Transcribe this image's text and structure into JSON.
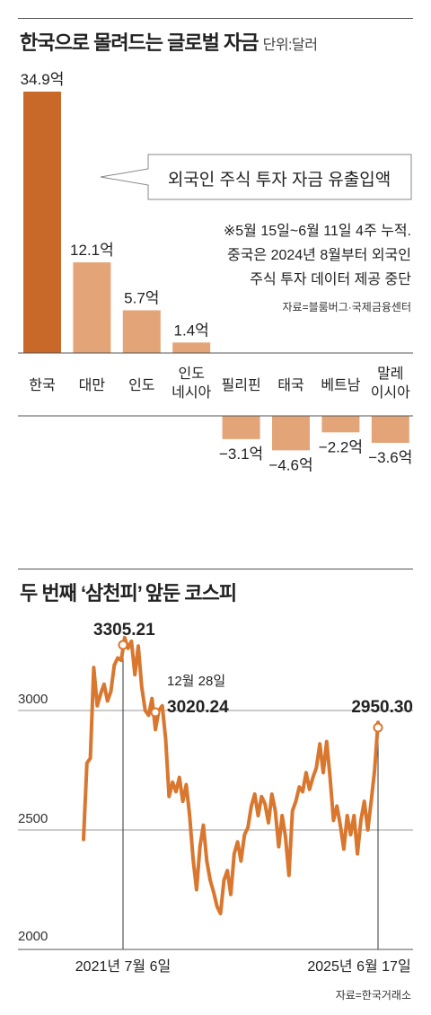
{
  "chart1": {
    "title": "한국으로 몰려드는 글로벌 자금",
    "unit": "단위:달러",
    "callout": "외국인 주식 투자 자금 유출입액",
    "note_lines": [
      "※5월 15일~6월 11일 4주 누적.",
      "중국은 2024년 8월부터 외국인",
      "주식 투자 데이터 제공 중단"
    ],
    "source": "자료=블룸버그·국제금융센터",
    "colors": {
      "highlight": "#c8692a",
      "normal": "#e3a577"
    }
  },
  "chart2": {
    "title": "두 번째 ‘삼천피’ 앞둔 코스피",
    "source": "자료=한국거래소",
    "line_color": "#d9772e",
    "annotations": [
      {
        "label": "3305.21",
        "sublabel": ""
      },
      {
        "label": "3020.24",
        "sublabel": "12월 28일"
      },
      {
        "label": "2950.30",
        "sublabel": ""
      }
    ],
    "x_labels": [
      "2021년 7월 6일",
      "2025년 6월 17일"
    ]
  },
  "chart_data": [
    {
      "type": "bar",
      "title": "한국으로 몰려드는 글로벌 자금",
      "ylabel": "단위:달러",
      "categories": [
        "한국",
        "대만",
        "인도",
        "인도\n네시아",
        "필리핀",
        "태국",
        "베트남",
        "말레\n이시아"
      ],
      "values": [
        34.9,
        12.1,
        5.7,
        1.4,
        -3.1,
        -4.6,
        -2.2,
        -3.6
      ],
      "value_labels": [
        "34.9억",
        "12.1억",
        "5.7억",
        "1.4억",
        "−3.1억",
        "−4.6억",
        "−2.2억",
        "−3.6억"
      ],
      "highlight_index": 0,
      "ylim": [
        -5,
        35
      ]
    },
    {
      "type": "line",
      "title": "두 번째 ‘삼천피’ 앞둔 코스피",
      "yticks": [
        2000,
        2500,
        3000
      ],
      "ylim": [
        2000,
        3400
      ],
      "x_range": [
        "2021-01",
        "2025-06"
      ],
      "series": [
        {
          "values": [
            2460,
            2780,
            2800,
            3180,
            3020,
            3070,
            3110,
            3040,
            3080,
            3190,
            3220,
            3210,
            3305,
            3260,
            3290,
            3150,
            3270,
            3100,
            3000,
            2980,
            3050,
            2920,
            3000,
            3020,
            2880,
            2640,
            2700,
            2660,
            2720,
            2620,
            2690,
            2560,
            2380,
            2250,
            2430,
            2520,
            2370,
            2290,
            2240,
            2180,
            2150,
            2290,
            2330,
            2230,
            2400,
            2450,
            2370,
            2480,
            2510,
            2600,
            2650,
            2560,
            2640,
            2610,
            2530,
            2650,
            2580,
            2430,
            2560,
            2470,
            2310,
            2580,
            2620,
            2680,
            2660,
            2740,
            2670,
            2720,
            2760,
            2860,
            2740,
            2870,
            2720,
            2540,
            2600,
            2520,
            2420,
            2560,
            2480,
            2560,
            2400,
            2540,
            2620,
            2500,
            2620,
            2750,
            2950
          ]
        }
      ]
    }
  ]
}
